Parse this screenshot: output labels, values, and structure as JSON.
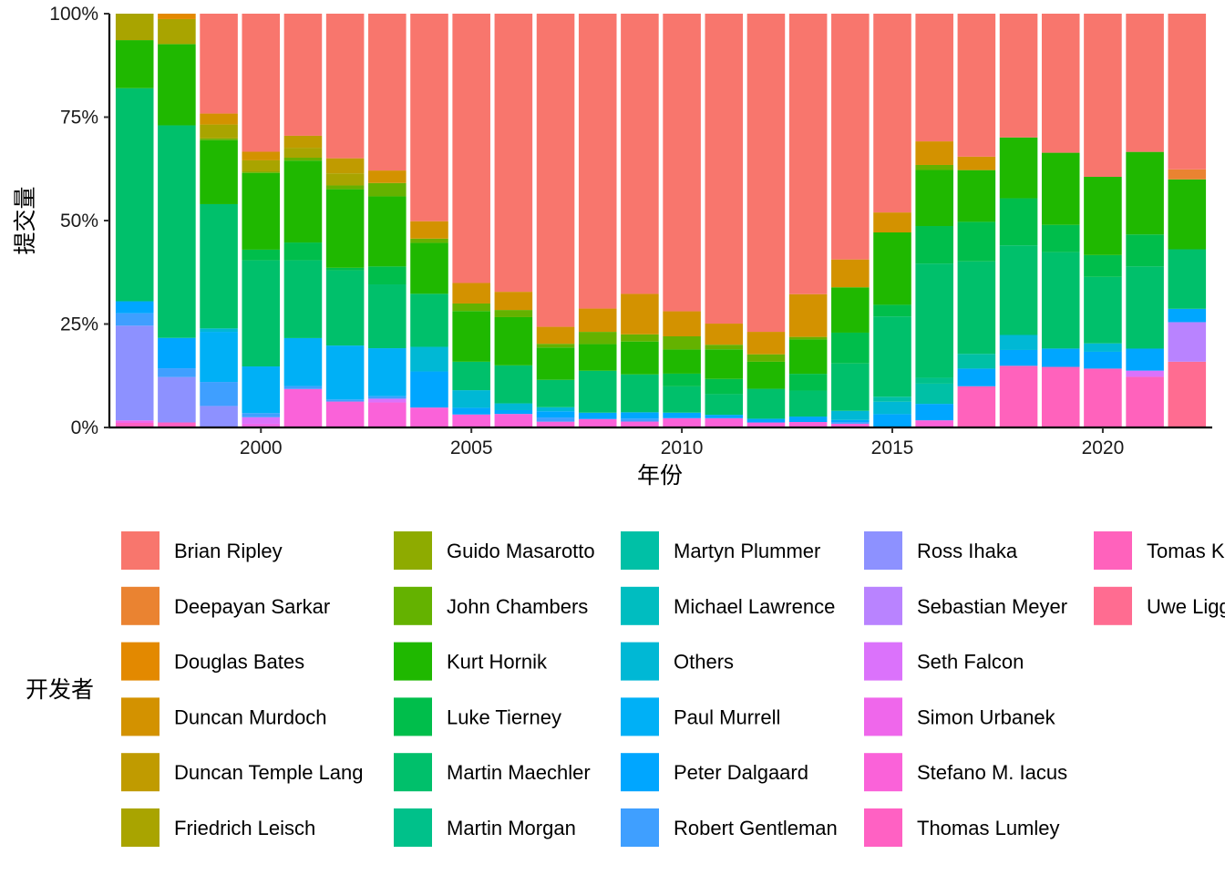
{
  "chart_data": {
    "type": "bar",
    "stacked": "percent",
    "xlabel": "年份",
    "ylabel": "提交量",
    "y_ticks": [
      "0%",
      "25%",
      "50%",
      "75%",
      "100%"
    ],
    "x_ticks": [
      "2000",
      "2005",
      "2010",
      "2015",
      "2020"
    ],
    "xlim": [
      1996.4,
      2022.6
    ],
    "ylim": [
      0,
      100
    ],
    "legend_title": "开发者",
    "legend_position": "bottom",
    "categories": [
      1997,
      1998,
      1999,
      2000,
      2001,
      2002,
      2003,
      2004,
      2005,
      2006,
      2007,
      2008,
      2009,
      2010,
      2011,
      2012,
      2013,
      2014,
      2015,
      2016,
      2017,
      2018,
      2019,
      2020,
      2021,
      2022
    ],
    "series": [
      {
        "name": "Brian Ripley",
        "color": "#F8766D",
        "values": [
          0,
          0,
          23.7,
          33.7,
          29.5,
          34.6,
          37.6,
          48.9,
          64.3,
          65.8,
          75.6,
          69.7,
          66.5,
          70.2,
          73.4,
          76.5,
          66.9,
          59.1,
          47.8,
          30.3,
          34.0,
          29.7,
          32.6,
          38.8,
          33.3,
          37.4
        ]
      },
      {
        "name": "Deepayan Sarkar",
        "color": "#EA8331",
        "values": [
          0,
          0,
          0,
          0,
          0,
          0,
          0,
          0,
          0,
          0,
          0,
          0,
          0,
          0,
          0,
          0,
          0,
          0,
          0,
          0,
          0,
          0,
          0,
          0,
          0,
          2.4
        ]
      },
      {
        "name": "Douglas Bates",
        "color": "#E38900",
        "values": [
          0,
          1.3,
          0,
          0,
          0,
          0,
          0,
          0,
          0,
          0,
          0,
          0,
          0,
          0,
          0,
          0,
          0,
          0,
          0,
          0,
          0,
          0,
          0,
          0,
          0,
          0
        ]
      },
      {
        "name": "Duncan Murdoch",
        "color": "#D39200",
        "values": [
          0,
          0,
          2.6,
          2.1,
          0,
          0,
          3.0,
          4.1,
          4.9,
          4.3,
          4.1,
          5.5,
          9.6,
          5.9,
          5.0,
          5.4,
          10.2,
          6.7,
          4.8,
          5.6,
          3.2,
          0,
          0,
          0,
          0,
          0
        ]
      },
      {
        "name": "Duncan Temple Lang",
        "color": "#C09B00",
        "values": [
          0,
          0,
          0,
          0,
          2.9,
          3.6,
          0,
          0,
          0,
          0,
          0,
          0,
          0,
          0,
          0,
          0,
          0,
          0,
          0,
          0,
          0,
          0,
          0,
          0,
          0,
          0
        ]
      },
      {
        "name": "Friedrich Leisch",
        "color": "#A9A400",
        "values": [
          6.4,
          6.0,
          3.3,
          2.8,
          2.4,
          2.9,
          0,
          0,
          0,
          0,
          0,
          0,
          0,
          0,
          0,
          0,
          0,
          0,
          0,
          0,
          0,
          0,
          0,
          0,
          0,
          0
        ]
      },
      {
        "name": "Guido Masarotto",
        "color": "#8EAB00",
        "values": [
          0,
          0,
          0,
          0,
          0,
          0,
          0,
          0,
          0,
          0,
          0,
          0,
          0,
          0,
          0,
          0,
          0,
          0,
          0,
          0,
          0,
          0,
          0,
          0,
          0,
          0
        ]
      },
      {
        "name": "John Chambers",
        "color": "#64B200",
        "values": [
          0,
          0,
          0.4,
          0.3,
          0.7,
          0.9,
          3.2,
          1.0,
          1.8,
          1.7,
          0.9,
          2.9,
          1.7,
          3.1,
          1.1,
          1.8,
          0.6,
          0,
          0,
          1.2,
          0,
          0,
          0,
          0,
          0,
          0
        ]
      },
      {
        "name": "Kurt Hornik",
        "color": "#1FB800",
        "values": [
          11.6,
          19.5,
          15.2,
          18.7,
          19.8,
          18.8,
          16.8,
          12.0,
          12.1,
          11.4,
          7.8,
          6.3,
          7.8,
          5.7,
          7.0,
          6.5,
          8.2,
          10.9,
          17.4,
          13.3,
          12.3,
          14.6,
          16.9,
          18.6,
          19.9,
          16.8
        ]
      },
      {
        "name": "Luke Tierney",
        "color": "#00BE4B",
        "values": [
          0,
          0,
          0,
          2.6,
          4.3,
          0.6,
          4.3,
          0,
          0,
          0,
          0,
          0,
          0,
          3.0,
          3.6,
          0,
          4.0,
          7.4,
          2.8,
          8.9,
          9.4,
          11.3,
          6.4,
          5.2,
          7.7,
          0
        ]
      },
      {
        "name": "Martin Maechler",
        "color": "#00C06B",
        "values": [
          51.5,
          51.0,
          29.5,
          25.9,
          18.8,
          18.0,
          15.3,
          12.5,
          6.8,
          9.0,
          6.6,
          9.9,
          9.0,
          6.2,
          4.9,
          7.2,
          6.2,
          11.4,
          19.3,
          27.1,
          22.0,
          21.5,
          22.6,
          15.8,
          19.8,
          14.3
        ]
      },
      {
        "name": "Martin Morgan",
        "color": "#00C18A",
        "values": [
          0,
          0,
          0,
          0,
          0,
          0,
          0,
          0,
          0,
          0,
          0,
          0,
          0,
          0,
          0,
          0,
          0,
          0,
          0,
          1.4,
          0,
          0,
          0,
          0,
          0,
          0
        ]
      },
      {
        "name": "Martyn Plummer",
        "color": "#00C0A6",
        "values": [
          0,
          0,
          0,
          0,
          0,
          0,
          0,
          0,
          0,
          0,
          0,
          0,
          0,
          0,
          0,
          0,
          0,
          0,
          1.2,
          4.8,
          3.5,
          0,
          0,
          0,
          0,
          0
        ]
      },
      {
        "name": "Michael Lawrence",
        "color": "#00BDC0",
        "values": [
          0,
          0,
          0,
          0,
          0,
          0,
          0,
          0,
          0,
          0,
          0,
          0,
          0,
          0,
          0,
          0,
          0,
          0,
          0,
          0,
          0,
          0,
          0,
          0,
          0,
          0
        ]
      },
      {
        "name": "Others",
        "color": "#00B8D5",
        "values": [
          0,
          0,
          0.8,
          0,
          0,
          0,
          0,
          5.8,
          4.2,
          1.6,
          1.0,
          0,
          0,
          0,
          0,
          0,
          0,
          2.2,
          3.0,
          0,
          0,
          3.6,
          0,
          2.0,
          0,
          0
        ]
      },
      {
        "name": "Paul Murrell",
        "color": "#00B0F6",
        "values": [
          0,
          0,
          11.9,
          11.4,
          11.6,
          12.9,
          11.5,
          0,
          0,
          0,
          0,
          0,
          0,
          0,
          0,
          0,
          0,
          0,
          0,
          0,
          0,
          0,
          0,
          0,
          0,
          0
        ]
      },
      {
        "name": "Peter Dalgaard",
        "color": "#00A6FF",
        "values": [
          2.9,
          7.3,
          0,
          0,
          0,
          0,
          0,
          8.5,
          1.6,
          0.9,
          1.5,
          1.5,
          1.5,
          1.3,
          0.8,
          0.9,
          1.3,
          0.5,
          3.2,
          3.9,
          4.2,
          3.8,
          4.3,
          4.0,
          5.3,
          3.2
        ]
      },
      {
        "name": "Robert Gentleman",
        "color": "#3F9FFF",
        "values": [
          3.0,
          2.1,
          5.7,
          1.0,
          0.7,
          0.5,
          0.6,
          0,
          0,
          0,
          1.0,
          0,
          0.7,
          0,
          0,
          0,
          0,
          0.4,
          0,
          0,
          0,
          0,
          0,
          0,
          0,
          0
        ]
      },
      {
        "name": "Ross Ihaka",
        "color": "#8D91FF",
        "values": [
          22.9,
          10.9,
          5.1,
          0,
          0,
          0,
          0,
          0,
          0,
          0,
          0,
          0,
          0,
          0,
          0,
          0,
          0,
          0,
          0,
          0,
          0,
          0,
          0,
          0,
          0,
          0
        ]
      },
      {
        "name": "Sebastian Meyer",
        "color": "#B983FF",
        "values": [
          0,
          0,
          0,
          0,
          0,
          0,
          0,
          0,
          0,
          0,
          0,
          0,
          0,
          0,
          0,
          0,
          0,
          0,
          0,
          0,
          0,
          0,
          0,
          0,
          0,
          9.5
        ]
      },
      {
        "name": "Seth Falcon",
        "color": "#DB72FB",
        "values": [
          0,
          0,
          0,
          1.6,
          0,
          0,
          0.9,
          0,
          0,
          0,
          0,
          0,
          0,
          0,
          0,
          0,
          0,
          0,
          0,
          0,
          0,
          0,
          0,
          0,
          1.5,
          0
        ]
      },
      {
        "name": "Simon Urbanek",
        "color": "#EF67EB",
        "values": [
          0.6,
          0,
          0,
          0.9,
          0,
          0,
          0,
          0,
          0,
          0,
          0,
          0,
          0,
          0,
          0,
          0,
          0,
          0,
          0,
          0,
          0,
          0,
          0,
          0,
          0,
          0
        ]
      },
      {
        "name": "Stefano M. Iacus",
        "color": "#FA62D9",
        "values": [
          0,
          0,
          0,
          0,
          9.3,
          6.2,
          6.0,
          4.7,
          3.1,
          3.2,
          1.4,
          2.0,
          1.4,
          2.2,
          2.2,
          1.2,
          1.3,
          0.9,
          0,
          1.7,
          0,
          0,
          0,
          0,
          0,
          0
        ]
      },
      {
        "name": "Thomas Lumley",
        "color": "#FF61C3",
        "values": [
          1.1,
          1.2,
          0,
          0,
          0,
          0,
          0,
          0,
          0,
          0,
          0,
          0,
          0,
          0,
          0,
          0,
          0,
          0,
          0,
          0,
          0,
          0,
          0,
          0,
          0,
          0
        ]
      },
      {
        "name": "Tomas Kalibera",
        "color": "#FF62BC",
        "values": [
          0,
          0,
          0,
          0,
          0,
          0,
          0,
          0,
          0,
          0,
          0,
          0,
          0,
          0,
          0,
          0,
          0,
          0,
          0,
          0,
          9.8,
          14.8,
          14.2,
          14.0,
          12.2,
          0
        ]
      },
      {
        "name": "Uwe Ligges",
        "color": "#FF6C91",
        "values": [
          0,
          0,
          0,
          0,
          0,
          0,
          0,
          0,
          0,
          0,
          0,
          0,
          0,
          0,
          0,
          0,
          0,
          0,
          0,
          0,
          0,
          0,
          0,
          0,
          0,
          15.8
        ]
      }
    ]
  }
}
